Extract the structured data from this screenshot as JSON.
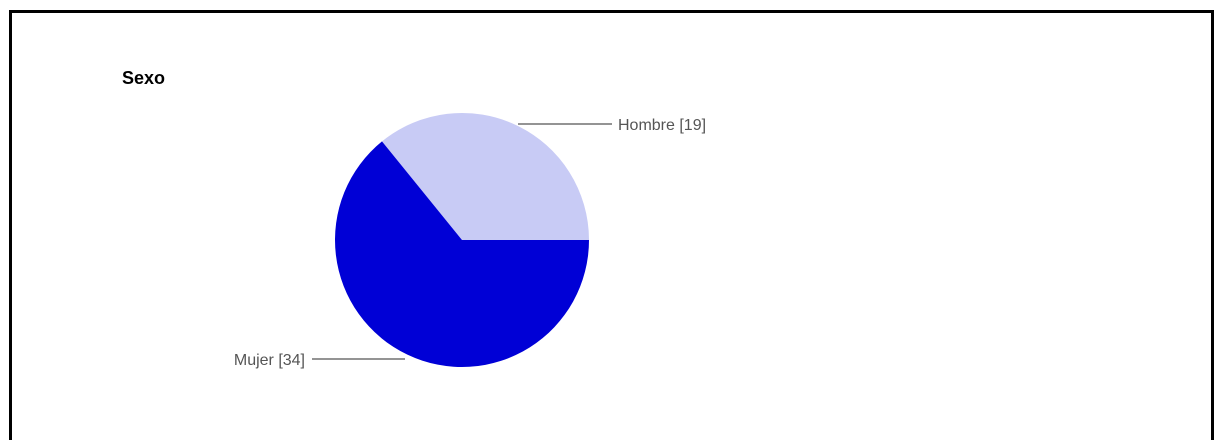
{
  "chart_data": {
    "type": "pie",
    "title": "Sexo",
    "slices": [
      {
        "label": "Hombre [19]",
        "name": "Hombre",
        "value": 19,
        "color": "#c8cbf5"
      },
      {
        "label": "Mujer [34]",
        "name": "Mujer",
        "value": 34,
        "color": "#0000d6"
      }
    ],
    "legend": "none",
    "leader_line_color": "#555555"
  }
}
